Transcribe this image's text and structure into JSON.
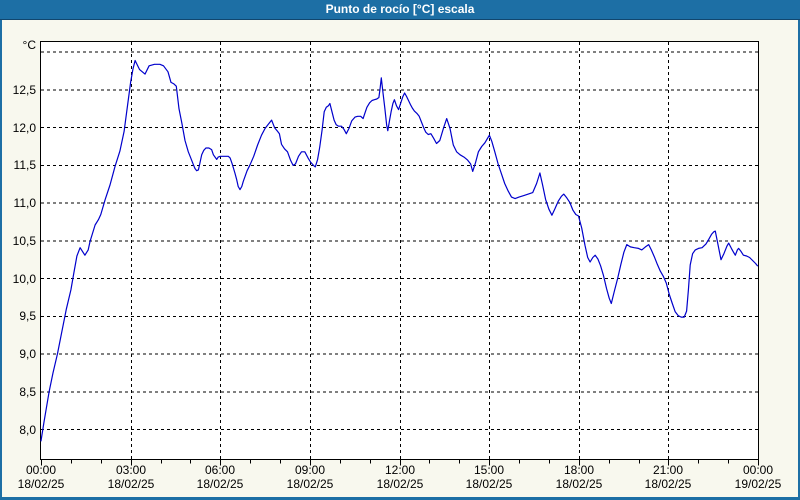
{
  "window": {
    "title": "Punto de rocío [°C] escala"
  },
  "colors": {
    "titlebar_bg": "#1d6fa5",
    "titlebar_text": "#ffffff",
    "window_border": "#1d6fa5",
    "content_bg": "#f8f8ee",
    "plot_bg": "#ffffff",
    "grid": "#000000",
    "axis": "#000000",
    "line": "#0000cc",
    "label_text": "#000000"
  },
  "chart_data": {
    "type": "line",
    "title": "Punto de rocío [°C] escala",
    "unit_label": "°C",
    "grid_style": "dashed",
    "legend": "none",
    "x_axis": {
      "range_hours": [
        0,
        24
      ],
      "minor_tick_every_hours": 1,
      "major_tick_every_hours": 3,
      "gridline_hours": [
        3,
        6,
        9,
        12,
        15,
        18,
        21
      ],
      "tick_labels": [
        {
          "hour": 0,
          "time": "00:00",
          "date": "18/02/25"
        },
        {
          "hour": 3,
          "time": "03:00",
          "date": "18/02/25"
        },
        {
          "hour": 6,
          "time": "06:00",
          "date": "18/02/25"
        },
        {
          "hour": 9,
          "time": "09:00",
          "date": "18/02/25"
        },
        {
          "hour": 12,
          "time": "12:00",
          "date": "18/02/25"
        },
        {
          "hour": 15,
          "time": "15:00",
          "date": "18/02/25"
        },
        {
          "hour": 18,
          "time": "18:00",
          "date": "18/02/25"
        },
        {
          "hour": 21,
          "time": "21:00",
          "date": "18/02/25"
        },
        {
          "hour": 24,
          "time": "00:00",
          "date": "19/02/25"
        }
      ]
    },
    "y_axis": {
      "unit": "°C",
      "min_visible": 7.6,
      "max_visible": 13.15,
      "gridline_step": 0.5,
      "gridline_values": [
        8.0,
        8.5,
        9.0,
        9.5,
        10.0,
        10.5,
        11.0,
        11.5,
        12.0,
        12.5,
        13.0
      ],
      "tick_labels": [
        {
          "value": 12.5,
          "label": "12,5"
        },
        {
          "value": 12.0,
          "label": "12,0"
        },
        {
          "value": 11.5,
          "label": "11,5"
        },
        {
          "value": 11.0,
          "label": "11,0"
        },
        {
          "value": 10.5,
          "label": "10,5"
        },
        {
          "value": 10.0,
          "label": "10,0"
        },
        {
          "value": 9.5,
          "label": "9,5"
        },
        {
          "value": 9.0,
          "label": "9,0"
        },
        {
          "value": 8.5,
          "label": "8,5"
        },
        {
          "value": 8.0,
          "label": "8,0"
        }
      ]
    },
    "series": [
      {
        "name": "Punto de rocío [°C]",
        "color": "#0000cc",
        "points": [
          [
            0.0,
            7.85
          ],
          [
            0.1,
            8.1
          ],
          [
            0.27,
            8.5
          ],
          [
            0.4,
            8.75
          ],
          [
            0.55,
            9.0
          ],
          [
            0.7,
            9.3
          ],
          [
            0.85,
            9.6
          ],
          [
            1.0,
            9.85
          ],
          [
            1.1,
            10.08
          ],
          [
            1.2,
            10.3
          ],
          [
            1.31,
            10.41
          ],
          [
            1.47,
            10.31
          ],
          [
            1.58,
            10.38
          ],
          [
            1.64,
            10.49
          ],
          [
            1.81,
            10.71
          ],
          [
            1.92,
            10.78
          ],
          [
            2.0,
            10.85
          ],
          [
            2.15,
            11.05
          ],
          [
            2.31,
            11.24
          ],
          [
            2.48,
            11.49
          ],
          [
            2.64,
            11.69
          ],
          [
            2.78,
            11.95
          ],
          [
            2.9,
            12.3
          ],
          [
            3.0,
            12.6
          ],
          [
            3.08,
            12.78
          ],
          [
            3.15,
            12.89
          ],
          [
            3.3,
            12.77
          ],
          [
            3.48,
            12.71
          ],
          [
            3.62,
            12.82
          ],
          [
            3.8,
            12.84
          ],
          [
            3.98,
            12.84
          ],
          [
            4.1,
            12.82
          ],
          [
            4.25,
            12.74
          ],
          [
            4.35,
            12.6
          ],
          [
            4.45,
            12.58
          ],
          [
            4.53,
            12.55
          ],
          [
            4.62,
            12.25
          ],
          [
            4.72,
            12.05
          ],
          [
            4.82,
            11.83
          ],
          [
            4.93,
            11.68
          ],
          [
            4.99,
            11.62
          ],
          [
            5.1,
            11.51
          ],
          [
            5.15,
            11.46
          ],
          [
            5.21,
            11.43
          ],
          [
            5.27,
            11.44
          ],
          [
            5.32,
            11.53
          ],
          [
            5.38,
            11.64
          ],
          [
            5.45,
            11.7
          ],
          [
            5.52,
            11.73
          ],
          [
            5.62,
            11.73
          ],
          [
            5.71,
            11.71
          ],
          [
            5.77,
            11.64
          ],
          [
            5.88,
            11.58
          ],
          [
            5.93,
            11.61
          ],
          [
            6.0,
            11.62
          ],
          [
            6.15,
            11.62
          ],
          [
            6.27,
            11.62
          ],
          [
            6.33,
            11.6
          ],
          [
            6.4,
            11.52
          ],
          [
            6.49,
            11.4
          ],
          [
            6.55,
            11.31
          ],
          [
            6.6,
            11.22
          ],
          [
            6.66,
            11.18
          ],
          [
            6.72,
            11.22
          ],
          [
            6.77,
            11.29
          ],
          [
            6.9,
            11.43
          ],
          [
            7.0,
            11.51
          ],
          [
            7.12,
            11.62
          ],
          [
            7.25,
            11.77
          ],
          [
            7.38,
            11.9
          ],
          [
            7.5,
            11.99
          ],
          [
            7.62,
            12.05
          ],
          [
            7.72,
            12.1
          ],
          [
            7.82,
            12.0
          ],
          [
            7.92,
            11.95
          ],
          [
            7.98,
            11.92
          ],
          [
            8.05,
            11.78
          ],
          [
            8.15,
            11.72
          ],
          [
            8.25,
            11.68
          ],
          [
            8.35,
            11.57
          ],
          [
            8.44,
            11.5
          ],
          [
            8.52,
            11.52
          ],
          [
            8.62,
            11.62
          ],
          [
            8.72,
            11.68
          ],
          [
            8.83,
            11.68
          ],
          [
            8.95,
            11.59
          ],
          [
            9.03,
            11.54
          ],
          [
            9.12,
            11.5
          ],
          [
            9.18,
            11.48
          ],
          [
            9.26,
            11.58
          ],
          [
            9.33,
            11.74
          ],
          [
            9.41,
            11.97
          ],
          [
            9.48,
            12.21
          ],
          [
            9.55,
            12.27
          ],
          [
            9.62,
            12.29
          ],
          [
            9.67,
            12.32
          ],
          [
            9.74,
            12.21
          ],
          [
            9.81,
            12.1
          ],
          [
            9.88,
            12.04
          ],
          [
            9.96,
            12.02
          ],
          [
            10.06,
            12.02
          ],
          [
            10.14,
            11.98
          ],
          [
            10.22,
            11.92
          ],
          [
            10.31,
            11.99
          ],
          [
            10.4,
            12.09
          ],
          [
            10.51,
            12.14
          ],
          [
            10.6,
            12.15
          ],
          [
            10.7,
            12.15
          ],
          [
            10.78,
            12.12
          ],
          [
            10.85,
            12.2
          ],
          [
            10.91,
            12.27
          ],
          [
            11.0,
            12.33
          ],
          [
            11.08,
            12.36
          ],
          [
            11.16,
            12.37
          ],
          [
            11.24,
            12.38
          ],
          [
            11.31,
            12.4
          ],
          [
            11.35,
            12.52
          ],
          [
            11.39,
            12.66
          ],
          [
            11.45,
            12.45
          ],
          [
            11.51,
            12.25
          ],
          [
            11.57,
            12.03
          ],
          [
            11.61,
            11.96
          ],
          [
            11.67,
            12.1
          ],
          [
            11.72,
            12.21
          ],
          [
            11.78,
            12.32
          ],
          [
            11.83,
            12.37
          ],
          [
            11.9,
            12.29
          ],
          [
            11.97,
            12.24
          ],
          [
            12.06,
            12.35
          ],
          [
            12.11,
            12.41
          ],
          [
            12.17,
            12.46
          ],
          [
            12.24,
            12.41
          ],
          [
            12.3,
            12.36
          ],
          [
            12.36,
            12.31
          ],
          [
            12.43,
            12.26
          ],
          [
            12.5,
            12.22
          ],
          [
            12.58,
            12.19
          ],
          [
            12.66,
            12.15
          ],
          [
            12.73,
            12.08
          ],
          [
            12.81,
            12.0
          ],
          [
            12.88,
            11.94
          ],
          [
            12.96,
            11.91
          ],
          [
            13.05,
            11.92
          ],
          [
            13.14,
            11.86
          ],
          [
            13.24,
            11.79
          ],
          [
            13.35,
            11.83
          ],
          [
            13.47,
            11.99
          ],
          [
            13.58,
            12.12
          ],
          [
            13.69,
            11.99
          ],
          [
            13.8,
            11.77
          ],
          [
            13.91,
            11.68
          ],
          [
            14.03,
            11.64
          ],
          [
            14.16,
            11.61
          ],
          [
            14.28,
            11.57
          ],
          [
            14.38,
            11.52
          ],
          [
            14.45,
            11.42
          ],
          [
            14.54,
            11.53
          ],
          [
            14.64,
            11.68
          ],
          [
            14.75,
            11.75
          ],
          [
            14.86,
            11.8
          ],
          [
            14.95,
            11.86
          ],
          [
            15.01,
            11.9
          ],
          [
            15.09,
            11.82
          ],
          [
            15.19,
            11.68
          ],
          [
            15.3,
            11.52
          ],
          [
            15.41,
            11.39
          ],
          [
            15.52,
            11.26
          ],
          [
            15.64,
            11.16
          ],
          [
            15.75,
            11.08
          ],
          [
            15.87,
            11.06
          ],
          [
            16.0,
            11.08
          ],
          [
            16.16,
            11.1
          ],
          [
            16.31,
            11.12
          ],
          [
            16.46,
            11.14
          ],
          [
            16.59,
            11.26
          ],
          [
            16.7,
            11.4
          ],
          [
            16.79,
            11.24
          ],
          [
            16.89,
            11.05
          ],
          [
            17.0,
            10.92
          ],
          [
            17.1,
            10.84
          ],
          [
            17.21,
            10.93
          ],
          [
            17.32,
            11.03
          ],
          [
            17.42,
            11.09
          ],
          [
            17.5,
            11.12
          ],
          [
            17.6,
            11.07
          ],
          [
            17.7,
            11.01
          ],
          [
            17.8,
            10.91
          ],
          [
            17.9,
            10.85
          ],
          [
            17.99,
            10.83
          ],
          [
            18.1,
            10.67
          ],
          [
            18.21,
            10.44
          ],
          [
            18.3,
            10.28
          ],
          [
            18.38,
            10.22
          ],
          [
            18.47,
            10.28
          ],
          [
            18.55,
            10.31
          ],
          [
            18.64,
            10.26
          ],
          [
            18.73,
            10.17
          ],
          [
            18.83,
            10.04
          ],
          [
            18.93,
            9.87
          ],
          [
            19.02,
            9.74
          ],
          [
            19.09,
            9.67
          ],
          [
            19.19,
            9.83
          ],
          [
            19.3,
            10.0
          ],
          [
            19.41,
            10.19
          ],
          [
            19.51,
            10.35
          ],
          [
            19.61,
            10.45
          ],
          [
            19.73,
            10.42
          ],
          [
            19.86,
            10.41
          ],
          [
            20.0,
            10.4
          ],
          [
            20.11,
            10.38
          ],
          [
            20.23,
            10.42
          ],
          [
            20.34,
            10.45
          ],
          [
            20.43,
            10.38
          ],
          [
            20.53,
            10.29
          ],
          [
            20.63,
            10.19
          ],
          [
            20.73,
            10.1
          ],
          [
            20.83,
            10.03
          ],
          [
            20.93,
            9.94
          ],
          [
            21.03,
            9.79
          ],
          [
            21.13,
            9.67
          ],
          [
            21.23,
            9.56
          ],
          [
            21.33,
            9.51
          ],
          [
            21.43,
            9.49
          ],
          [
            21.53,
            9.49
          ],
          [
            21.61,
            9.57
          ],
          [
            21.67,
            9.85
          ],
          [
            21.73,
            10.18
          ],
          [
            21.81,
            10.33
          ],
          [
            21.9,
            10.38
          ],
          [
            22.01,
            10.4
          ],
          [
            22.13,
            10.41
          ],
          [
            22.26,
            10.46
          ],
          [
            22.35,
            10.52
          ],
          [
            22.45,
            10.59
          ],
          [
            22.52,
            10.62
          ],
          [
            22.57,
            10.63
          ],
          [
            22.66,
            10.45
          ],
          [
            22.76,
            10.25
          ],
          [
            22.86,
            10.33
          ],
          [
            22.96,
            10.43
          ],
          [
            23.02,
            10.47
          ],
          [
            23.11,
            10.4
          ],
          [
            23.18,
            10.35
          ],
          [
            23.24,
            10.31
          ],
          [
            23.31,
            10.38
          ],
          [
            23.35,
            10.4
          ],
          [
            23.43,
            10.36
          ],
          [
            23.51,
            10.31
          ],
          [
            23.62,
            10.3
          ],
          [
            23.72,
            10.28
          ],
          [
            23.82,
            10.24
          ],
          [
            23.92,
            10.2
          ],
          [
            23.98,
            10.17
          ]
        ]
      }
    ]
  }
}
